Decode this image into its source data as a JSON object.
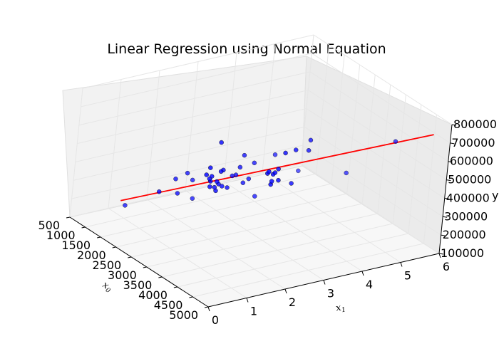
{
  "chart_data": {
    "type": "scatter",
    "title": "Linear Regression using Normal Equation",
    "xlabel": "x0",
    "xlabel_sub_base": "x",
    "xlabel_sub": "0",
    "ylabel": "x1",
    "ylabel_sub_base": "x",
    "ylabel_sub": "1",
    "zlabel": "y",
    "x_ticks": [
      "500",
      "1000",
      "1500",
      "2000",
      "2500",
      "3000",
      "3500",
      "4000",
      "4500",
      "5000"
    ],
    "y_ticks": [
      "0",
      "1",
      "2",
      "3",
      "4",
      "5",
      "6"
    ],
    "z_ticks": [
      "100000",
      "200000",
      "300000",
      "400000",
      "500000",
      "600000",
      "700000",
      "800000"
    ],
    "xlim": [
      500,
      5000
    ],
    "ylim": [
      0,
      6
    ],
    "zlim": [
      100000,
      800000
    ],
    "grid": true,
    "series": [
      {
        "type": "scatter",
        "color": "#0000ff",
        "points": [
          [
            2104,
            3,
            399900
          ],
          [
            1600,
            3,
            329900
          ],
          [
            2400,
            3,
            369000
          ],
          [
            1416,
            2,
            232000
          ],
          [
            3000,
            4,
            539900
          ],
          [
            1985,
            4,
            299900
          ],
          [
            1534,
            3,
            314900
          ],
          [
            1427,
            3,
            198999
          ],
          [
            1380,
            3,
            212000
          ],
          [
            1494,
            3,
            242500
          ],
          [
            1940,
            4,
            239999
          ],
          [
            2000,
            3,
            347000
          ],
          [
            1890,
            3,
            329999
          ],
          [
            4478,
            5,
            699900
          ],
          [
            1268,
            3,
            259900
          ],
          [
            2300,
            4,
            449900
          ],
          [
            1320,
            2,
            299900
          ],
          [
            1236,
            3,
            199900
          ],
          [
            2609,
            4,
            499998
          ],
          [
            3031,
            4,
            599000
          ],
          [
            1767,
            3,
            252900
          ],
          [
            1888,
            2,
            255000
          ],
          [
            1604,
            3,
            242900
          ],
          [
            1962,
            4,
            259900
          ],
          [
            3890,
            3,
            573900
          ],
          [
            1100,
            3,
            249900
          ],
          [
            1458,
            3,
            464500
          ],
          [
            2526,
            3,
            469000
          ],
          [
            2200,
            3,
            475000
          ],
          [
            2637,
            3,
            299900
          ],
          [
            1839,
            2,
            349900
          ],
          [
            1000,
            1,
            169900
          ],
          [
            2040,
            4,
            314900
          ],
          [
            3137,
            3,
            579900
          ],
          [
            1811,
            4,
            285900
          ],
          [
            1437,
            3,
            249900
          ],
          [
            1239,
            3,
            229900
          ],
          [
            2132,
            4,
            345000
          ],
          [
            4215,
            4,
            549000
          ],
          [
            2162,
            4,
            287000
          ],
          [
            1664,
            2,
            368500
          ],
          [
            2238,
            3,
            329900
          ],
          [
            2567,
            4,
            314000
          ],
          [
            1200,
            3,
            299000
          ],
          [
            852,
            2,
            179900
          ],
          [
            1852,
            4,
            299900
          ],
          [
            1203,
            3,
            239500
          ]
        ]
      },
      {
        "type": "line",
        "color": "#ff0000",
        "points": [
          [
            852,
            1,
            179900
          ],
          [
            4478,
            6,
            689000
          ]
        ]
      }
    ]
  }
}
